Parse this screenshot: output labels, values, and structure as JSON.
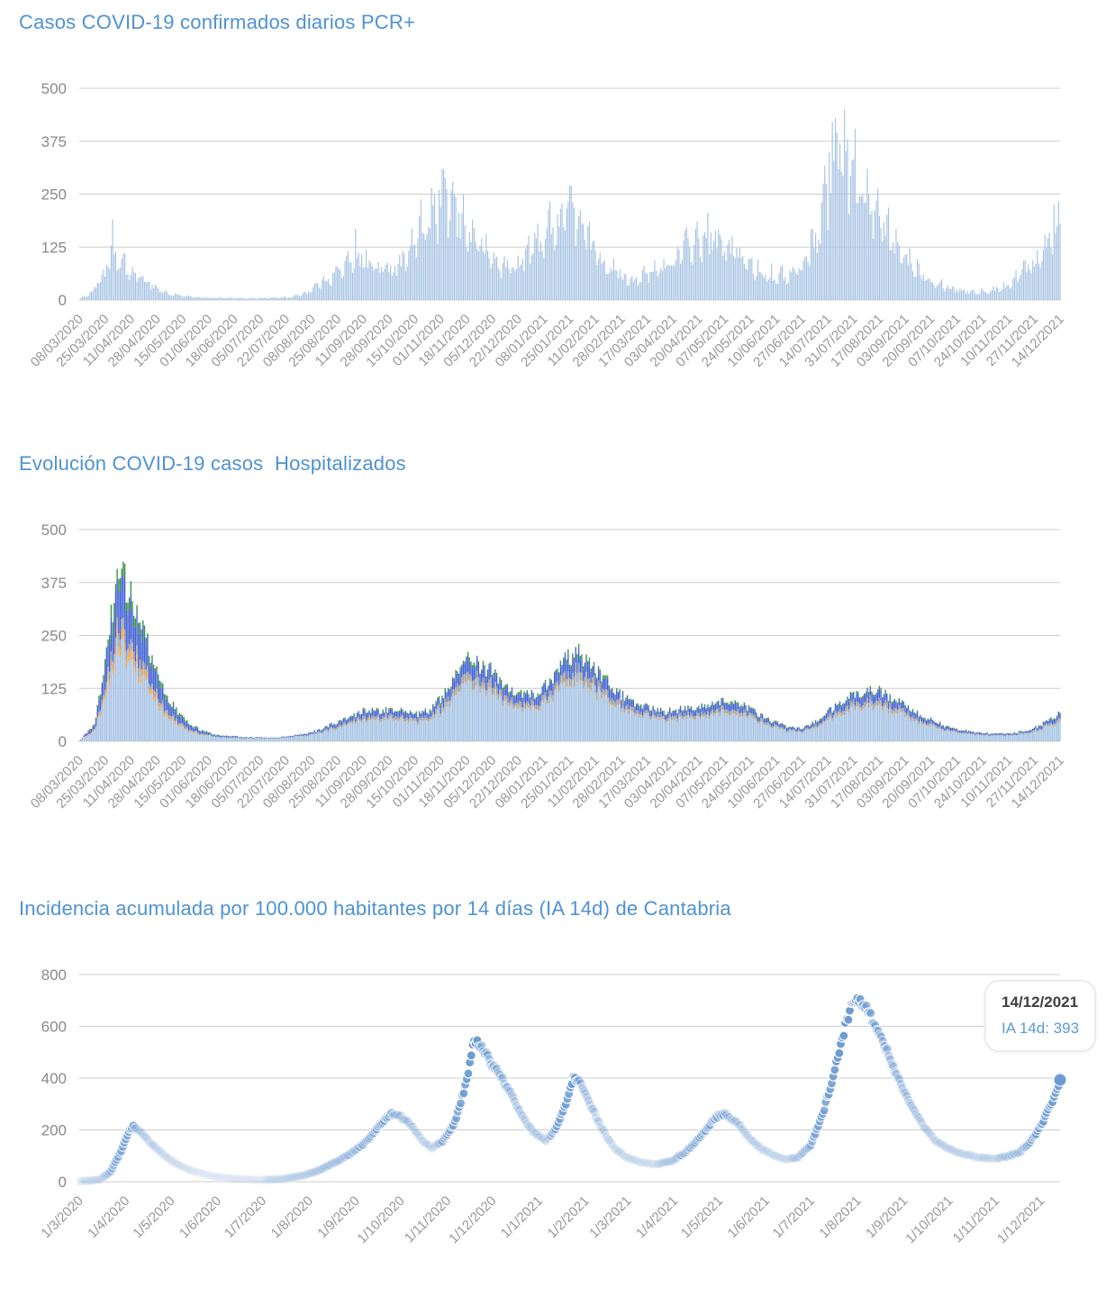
{
  "page": {
    "background": "#ffffff",
    "title_color": "#4f92d3",
    "axis_text_color": "#8a8a8a",
    "grid_color": "#cccccc"
  },
  "chart_data": [
    {
      "id": "daily-pcr-cases",
      "type": "bar",
      "title": "Casos COVID-19 confirmados diarios PCR+",
      "ylabel": "",
      "xlabel": "",
      "ylim": [
        0,
        500
      ],
      "y_ticks": [
        500,
        375,
        250,
        125,
        0
      ],
      "grid": true,
      "legend": "none",
      "bar_color": "#a6c3e3",
      "x_tick_interval_days": 17,
      "total_days": 647,
      "x_tick_labels": [
        "08/03/2020",
        "25/03/2020",
        "11/04/2020",
        "28/04/2020",
        "15/05/2020",
        "01/06/2020",
        "18/06/2020",
        "05/07/2020",
        "22/07/2020",
        "08/08/2020",
        "25/08/2020",
        "11/09/2020",
        "28/09/2020",
        "15/10/2020",
        "01/11/2020",
        "18/11/2020",
        "05/12/2020",
        "22/12/2020",
        "08/01/2021",
        "25/01/2021",
        "11/02/2021",
        "28/02/2021",
        "17/03/2021",
        "03/04/2021",
        "20/04/2021",
        "07/05/2021",
        "24/05/2021",
        "10/06/2021",
        "27/06/2021",
        "14/07/2021",
        "31/07/2021",
        "17/08/2021",
        "03/09/2021",
        "20/09/2021",
        "07/10/2021",
        "24/10/2021",
        "10/11/2021",
        "27/11/2021",
        "14/12/2021"
      ],
      "series_keyframes_day_value": [
        [
          0,
          1
        ],
        [
          8,
          18
        ],
        [
          15,
          55
        ],
        [
          20,
          85
        ],
        [
          22,
          115
        ],
        [
          25,
          92
        ],
        [
          30,
          70
        ],
        [
          38,
          55
        ],
        [
          45,
          45
        ],
        [
          52,
          25
        ],
        [
          60,
          13
        ],
        [
          70,
          8
        ],
        [
          85,
          5
        ],
        [
          100,
          4
        ],
        [
          120,
          4
        ],
        [
          140,
          7
        ],
        [
          148,
          15
        ],
        [
          155,
          30
        ],
        [
          163,
          50
        ],
        [
          170,
          65
        ],
        [
          180,
          90
        ],
        [
          185,
          105
        ],
        [
          190,
          85
        ],
        [
          200,
          70
        ],
        [
          210,
          85
        ],
        [
          220,
          130
        ],
        [
          228,
          175
        ],
        [
          235,
          205
        ],
        [
          240,
          235
        ],
        [
          245,
          215
        ],
        [
          250,
          195
        ],
        [
          255,
          170
        ],
        [
          262,
          140
        ],
        [
          268,
          110
        ],
        [
          275,
          85
        ],
        [
          282,
          75
        ],
        [
          290,
          85
        ],
        [
          296,
          110
        ],
        [
          300,
          130
        ],
        [
          306,
          150
        ],
        [
          313,
          180
        ],
        [
          320,
          200
        ],
        [
          323,
          210
        ],
        [
          330,
          170
        ],
        [
          337,
          130
        ],
        [
          344,
          100
        ],
        [
          351,
          75
        ],
        [
          358,
          55
        ],
        [
          365,
          50
        ],
        [
          372,
          55
        ],
        [
          379,
          65
        ],
        [
          386,
          80
        ],
        [
          393,
          100
        ],
        [
          400,
          120
        ],
        [
          407,
          135
        ],
        [
          414,
          140
        ],
        [
          420,
          135
        ],
        [
          427,
          120
        ],
        [
          434,
          100
        ],
        [
          441,
          85
        ],
        [
          448,
          70
        ],
        [
          455,
          60
        ],
        [
          462,
          55
        ],
        [
          469,
          60
        ],
        [
          476,
          75
        ],
        [
          480,
          110
        ],
        [
          486,
          160
        ],
        [
          492,
          240
        ],
        [
          496,
          320
        ],
        [
          500,
          340
        ],
        [
          505,
          320
        ],
        [
          510,
          285
        ],
        [
          517,
          240
        ],
        [
          524,
          200
        ],
        [
          531,
          160
        ],
        [
          538,
          125
        ],
        [
          545,
          100
        ],
        [
          552,
          75
        ],
        [
          559,
          55
        ],
        [
          566,
          40
        ],
        [
          573,
          30
        ],
        [
          580,
          24
        ],
        [
          587,
          20
        ],
        [
          594,
          18
        ],
        [
          601,
          22
        ],
        [
          608,
          30
        ],
        [
          615,
          45
        ],
        [
          622,
          70
        ],
        [
          629,
          95
        ],
        [
          636,
          130
        ],
        [
          641,
          165
        ],
        [
          646,
          200
        ]
      ],
      "notable_spikes_day_value": [
        [
          22,
          190
        ],
        [
          30,
          110
        ],
        [
          182,
          168
        ],
        [
          240,
          308
        ],
        [
          242,
          262
        ],
        [
          247,
          250
        ],
        [
          318,
          228
        ],
        [
          322,
          232
        ],
        [
          326,
          218
        ],
        [
          406,
          168
        ],
        [
          412,
          160
        ],
        [
          430,
          150
        ],
        [
          494,
          348
        ],
        [
          496,
          420
        ],
        [
          499,
          395
        ],
        [
          501,
          370
        ],
        [
          505,
          352
        ],
        [
          509,
          330
        ],
        [
          642,
          225
        ],
        [
          645,
          232
        ]
      ]
    },
    {
      "id": "hospitalized-evolution",
      "type": "stacked-bar",
      "title": "Evolución COVID-19 casos  Hospitalizados",
      "ylabel": "",
      "xlabel": "",
      "ylim": [
        0,
        500
      ],
      "y_ticks": [
        500,
        375,
        250,
        125,
        0
      ],
      "grid": true,
      "legend": "none",
      "x_tick_interval_days": 17,
      "total_days": 647,
      "x_tick_labels": [
        "08/03/2020",
        "25/03/2020",
        "11/04/2020",
        "28/04/2020",
        "15/05/2020",
        "01/06/2020",
        "18/06/2020",
        "05/07/2020",
        "22/07/2020",
        "08/08/2020",
        "25/08/2020",
        "11/09/2020",
        "28/09/2020",
        "15/10/2020",
        "01/11/2020",
        "18/11/2020",
        "05/12/2020",
        "22/12/2020",
        "08/01/2021",
        "25/01/2021",
        "11/02/2021",
        "28/02/2021",
        "17/03/2021",
        "03/04/2021",
        "20/04/2021",
        "07/05/2021",
        "24/05/2021",
        "10/06/2021",
        "27/06/2021",
        "14/07/2021",
        "31/07/2021",
        "17/08/2021",
        "03/09/2021",
        "20/09/2021",
        "07/10/2021",
        "24/10/2021",
        "10/11/2021",
        "27/11/2021",
        "14/12/2021"
      ],
      "series": [
        {
          "name": "layer-lightblue",
          "color": "#a9c5e5"
        },
        {
          "name": "layer-orange",
          "color": "#f2a54e"
        },
        {
          "name": "layer-gray",
          "color": "#a3a19b"
        },
        {
          "name": "layer-blue",
          "color": "#4262d6"
        },
        {
          "name": "layer-green",
          "color": "#3a9444"
        }
      ],
      "total_keyframes_day_value": [
        [
          0,
          2
        ],
        [
          10,
          40
        ],
        [
          17,
          180
        ],
        [
          24,
          370
        ],
        [
          28,
          400
        ],
        [
          35,
          330
        ],
        [
          42,
          260
        ],
        [
          49,
          185
        ],
        [
          56,
          120
        ],
        [
          63,
          78
        ],
        [
          70,
          48
        ],
        [
          80,
          26
        ],
        [
          90,
          16
        ],
        [
          110,
          10
        ],
        [
          130,
          9
        ],
        [
          150,
          18
        ],
        [
          160,
          30
        ],
        [
          175,
          55
        ],
        [
          190,
          75
        ],
        [
          200,
          70
        ],
        [
          210,
          80
        ],
        [
          220,
          62
        ],
        [
          230,
          72
        ],
        [
          240,
          110
        ],
        [
          250,
          165
        ],
        [
          255,
          195
        ],
        [
          262,
          185
        ],
        [
          270,
          170
        ],
        [
          280,
          140
        ],
        [
          290,
          108
        ],
        [
          300,
          112
        ],
        [
          310,
          140
        ],
        [
          320,
          190
        ],
        [
          328,
          208
        ],
        [
          335,
          195
        ],
        [
          345,
          150
        ],
        [
          355,
          115
        ],
        [
          365,
          92
        ],
        [
          375,
          78
        ],
        [
          385,
          70
        ],
        [
          395,
          75
        ],
        [
          405,
          80
        ],
        [
          415,
          85
        ],
        [
          425,
          95
        ],
        [
          435,
          90
        ],
        [
          445,
          70
        ],
        [
          455,
          50
        ],
        [
          465,
          36
        ],
        [
          475,
          30
        ],
        [
          485,
          45
        ],
        [
          495,
          75
        ],
        [
          505,
          100
        ],
        [
          515,
          115
        ],
        [
          525,
          120
        ],
        [
          535,
          105
        ],
        [
          545,
          80
        ],
        [
          555,
          60
        ],
        [
          565,
          45
        ],
        [
          575,
          30
        ],
        [
          585,
          25
        ],
        [
          595,
          20
        ],
        [
          605,
          18
        ],
        [
          615,
          20
        ],
        [
          625,
          26
        ],
        [
          635,
          42
        ],
        [
          646,
          66
        ]
      ],
      "stack_fractions_first_wave": [
        0.56,
        0.05,
        0.065,
        0.255,
        0.07
      ],
      "stack_fractions_later": [
        0.7,
        0.012,
        0.095,
        0.16,
        0.033
      ]
    },
    {
      "id": "ia14d-cantabria",
      "type": "scatter",
      "title": "Incidencia acumulada por 100.000 habitantes por 14 días (IA 14d) de Cantabria",
      "ylabel": "",
      "xlabel": "",
      "ylim": [
        0,
        800
      ],
      "y_ticks": [
        800,
        600,
        400,
        200,
        0
      ],
      "grid": true,
      "legend": "none",
      "dot_color": "#6d9cd1",
      "total_days": 654,
      "x_tick_labels": [
        "1/3/2020",
        "1/4/2020",
        "1/5/2020",
        "1/6/2020",
        "1/7/2020",
        "1/8/2020",
        "1/9/2020",
        "1/10/2020",
        "1/11/2020",
        "1/12/2020",
        "1/1/2021",
        "1/2/2021",
        "1/3/2021",
        "1/4/2021",
        "1/5/2021",
        "1/6/2021",
        "1/7/2021",
        "1/8/2021",
        "1/9/2021",
        "1/10/2021",
        "1/11/2021",
        "1/12/2021"
      ],
      "x_tick_day_offsets": [
        0,
        31,
        61,
        92,
        122,
        153,
        184,
        214,
        245,
        275,
        306,
        337,
        365,
        396,
        426,
        457,
        487,
        518,
        549,
        579,
        610,
        640
      ],
      "series_keyframes_day_value": [
        [
          0,
          1
        ],
        [
          14,
          8
        ],
        [
          21,
          40
        ],
        [
          28,
          120
        ],
        [
          33,
          195
        ],
        [
          36,
          213
        ],
        [
          42,
          185
        ],
        [
          50,
          135
        ],
        [
          58,
          95
        ],
        [
          66,
          65
        ],
        [
          76,
          40
        ],
        [
          90,
          20
        ],
        [
          105,
          10
        ],
        [
          122,
          7
        ],
        [
          135,
          10
        ],
        [
          150,
          25
        ],
        [
          160,
          45
        ],
        [
          170,
          75
        ],
        [
          180,
          105
        ],
        [
          190,
          150
        ],
        [
          200,
          215
        ],
        [
          207,
          262
        ],
        [
          215,
          248
        ],
        [
          222,
          212
        ],
        [
          229,
          155
        ],
        [
          235,
          130
        ],
        [
          242,
          158
        ],
        [
          250,
          230
        ],
        [
          258,
          390
        ],
        [
          263,
          548
        ],
        [
          268,
          520
        ],
        [
          274,
          460
        ],
        [
          280,
          415
        ],
        [
          288,
          330
        ],
        [
          296,
          240
        ],
        [
          304,
          185
        ],
        [
          311,
          158
        ],
        [
          318,
          210
        ],
        [
          324,
          300
        ],
        [
          329,
          398
        ],
        [
          334,
          385
        ],
        [
          340,
          300
        ],
        [
          348,
          205
        ],
        [
          356,
          130
        ],
        [
          364,
          95
        ],
        [
          374,
          74
        ],
        [
          384,
          68
        ],
        [
          394,
          78
        ],
        [
          404,
          115
        ],
        [
          414,
          180
        ],
        [
          424,
          250
        ],
        [
          430,
          262
        ],
        [
          438,
          228
        ],
        [
          446,
          170
        ],
        [
          454,
          128
        ],
        [
          462,
          104
        ],
        [
          470,
          86
        ],
        [
          478,
          92
        ],
        [
          487,
          140
        ],
        [
          495,
          260
        ],
        [
          503,
          430
        ],
        [
          510,
          600
        ],
        [
          516,
          712
        ],
        [
          522,
          688
        ],
        [
          530,
          610
        ],
        [
          538,
          505
        ],
        [
          546,
          390
        ],
        [
          554,
          290
        ],
        [
          562,
          215
        ],
        [
          570,
          160
        ],
        [
          578,
          128
        ],
        [
          588,
          108
        ],
        [
          598,
          95
        ],
        [
          608,
          90
        ],
        [
          618,
          97
        ],
        [
          626,
          115
        ],
        [
          634,
          158
        ],
        [
          642,
          235
        ],
        [
          648,
          310
        ],
        [
          653,
          393
        ]
      ],
      "tooltip": {
        "date": "14/12/2021",
        "label": "IA 14d: 393",
        "value": 393
      }
    }
  ]
}
